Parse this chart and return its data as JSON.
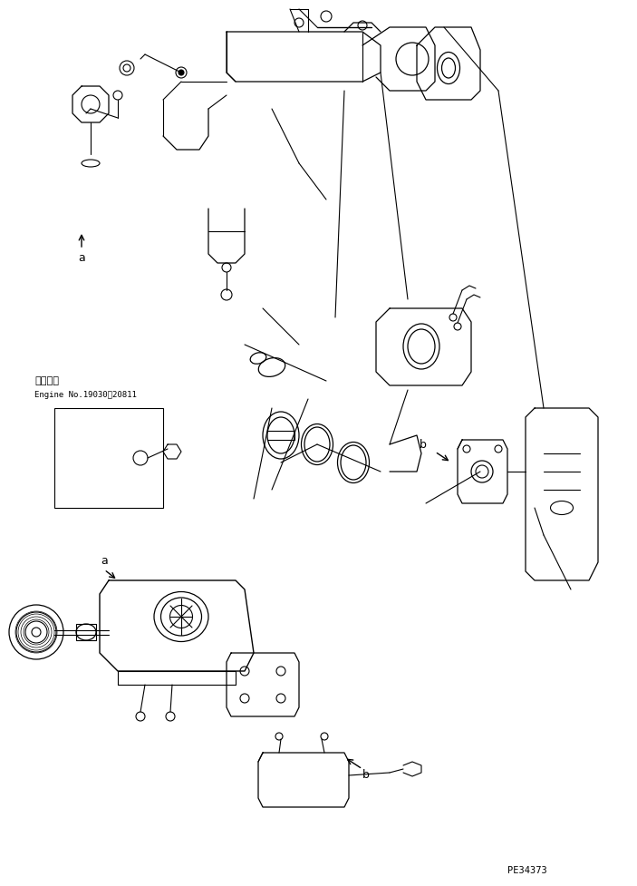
{
  "title": "",
  "background_color": "#ffffff",
  "line_color": "#000000",
  "text_color": "#000000",
  "label_a1": "a",
  "label_a2": "a",
  "label_b1": "b",
  "label_b2": "b",
  "applicability_jp": "適用号機",
  "applicability_en": "Engine No.19030～20811",
  "part_id": "PE34373",
  "fig_width": 7.03,
  "fig_height": 9.77,
  "dpi": 100
}
